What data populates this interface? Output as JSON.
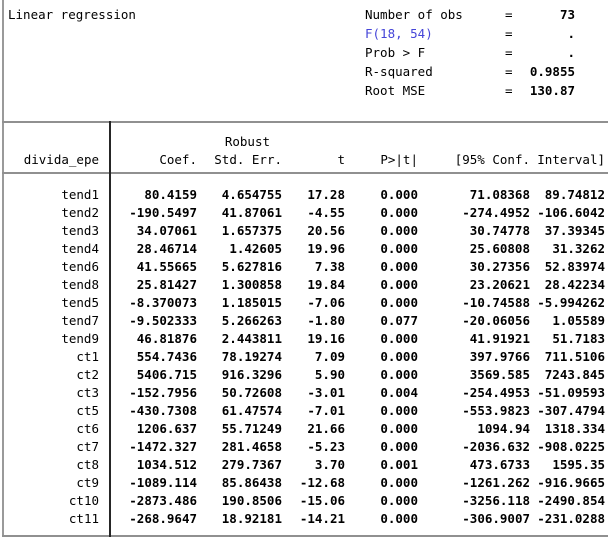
{
  "header": {
    "title": "Linear regression",
    "stats": [
      {
        "label": "Number of obs",
        "eq": "=",
        "value": "73",
        "link": false
      },
      {
        "label": "F(18, 54)",
        "eq": "=",
        "value": ".",
        "link": true
      },
      {
        "label": "Prob > F",
        "eq": "=",
        "value": ".",
        "link": false
      },
      {
        "label": "R-squared",
        "eq": "=",
        "value": "0.9855",
        "link": false
      },
      {
        "label": "Root MSE",
        "eq": "=",
        "value": "130.87",
        "link": false
      }
    ]
  },
  "table": {
    "depvar": "divida_epe",
    "robust_label": "Robust",
    "columns": [
      "Coef.",
      "Std. Err.",
      "t",
      "P>|t|",
      "[95% Conf.",
      "Interval]"
    ],
    "rows": [
      {
        "var": "tend1",
        "coef": "80.4159",
        "se": "4.654755",
        "t": "17.28",
        "p": "0.000",
        "lo": "71.08368",
        "hi": "89.74812"
      },
      {
        "var": "tend2",
        "coef": "-190.5497",
        "se": "41.87061",
        "t": "-4.55",
        "p": "0.000",
        "lo": "-274.4952",
        "hi": "-106.6042"
      },
      {
        "var": "tend3",
        "coef": "34.07061",
        "se": "1.657375",
        "t": "20.56",
        "p": "0.000",
        "lo": "30.74778",
        "hi": "37.39345"
      },
      {
        "var": "tend4",
        "coef": "28.46714",
        "se": "1.42605",
        "t": "19.96",
        "p": "0.000",
        "lo": "25.60808",
        "hi": "31.3262"
      },
      {
        "var": "tend6",
        "coef": "41.55665",
        "se": "5.627816",
        "t": "7.38",
        "p": "0.000",
        "lo": "30.27356",
        "hi": "52.83974"
      },
      {
        "var": "tend8",
        "coef": "25.81427",
        "se": "1.300858",
        "t": "19.84",
        "p": "0.000",
        "lo": "23.20621",
        "hi": "28.42234"
      },
      {
        "var": "tend5",
        "coef": "-8.370073",
        "se": "1.185015",
        "t": "-7.06",
        "p": "0.000",
        "lo": "-10.74588",
        "hi": "-5.994262"
      },
      {
        "var": "tend7",
        "coef": "-9.502333",
        "se": "5.266263",
        "t": "-1.80",
        "p": "0.077",
        "lo": "-20.06056",
        "hi": "1.05589"
      },
      {
        "var": "tend9",
        "coef": "46.81876",
        "se": "2.443811",
        "t": "19.16",
        "p": "0.000",
        "lo": "41.91921",
        "hi": "51.7183"
      },
      {
        "var": "ct1",
        "coef": "554.7436",
        "se": "78.19274",
        "t": "7.09",
        "p": "0.000",
        "lo": "397.9766",
        "hi": "711.5106"
      },
      {
        "var": "ct2",
        "coef": "5406.715",
        "se": "916.3296",
        "t": "5.90",
        "p": "0.000",
        "lo": "3569.585",
        "hi": "7243.845"
      },
      {
        "var": "ct3",
        "coef": "-152.7956",
        "se": "50.72608",
        "t": "-3.01",
        "p": "0.004",
        "lo": "-254.4953",
        "hi": "-51.09593"
      },
      {
        "var": "ct5",
        "coef": "-430.7308",
        "se": "61.47574",
        "t": "-7.01",
        "p": "0.000",
        "lo": "-553.9823",
        "hi": "-307.4794"
      },
      {
        "var": "ct6",
        "coef": "1206.637",
        "se": "55.71249",
        "t": "21.66",
        "p": "0.000",
        "lo": "1094.94",
        "hi": "1318.334"
      },
      {
        "var": "ct7",
        "coef": "-1472.327",
        "se": "281.4658",
        "t": "-5.23",
        "p": "0.000",
        "lo": "-2036.632",
        "hi": "-908.0225"
      },
      {
        "var": "ct8",
        "coef": "1034.512",
        "se": "279.7367",
        "t": "3.70",
        "p": "0.001",
        "lo": "473.6733",
        "hi": "1595.35"
      },
      {
        "var": "ct9",
        "coef": "-1089.114",
        "se": "85.86438",
        "t": "-12.68",
        "p": "0.000",
        "lo": "-1261.262",
        "hi": "-916.9665"
      },
      {
        "var": "ct10",
        "coef": "-2873.486",
        "se": "190.8506",
        "t": "-15.06",
        "p": "0.000",
        "lo": "-3256.118",
        "hi": "-2490.854"
      },
      {
        "var": "ct11",
        "coef": "-268.9647",
        "se": "18.92181",
        "t": "-14.21",
        "p": "0.000",
        "lo": "-306.9007",
        "hi": "-231.0288"
      }
    ]
  },
  "colors": {
    "link_blue": "#4545d8",
    "rule_gray": "#909090",
    "divider_dark": "#262626",
    "text": "#000000",
    "background": "#ffffff"
  }
}
